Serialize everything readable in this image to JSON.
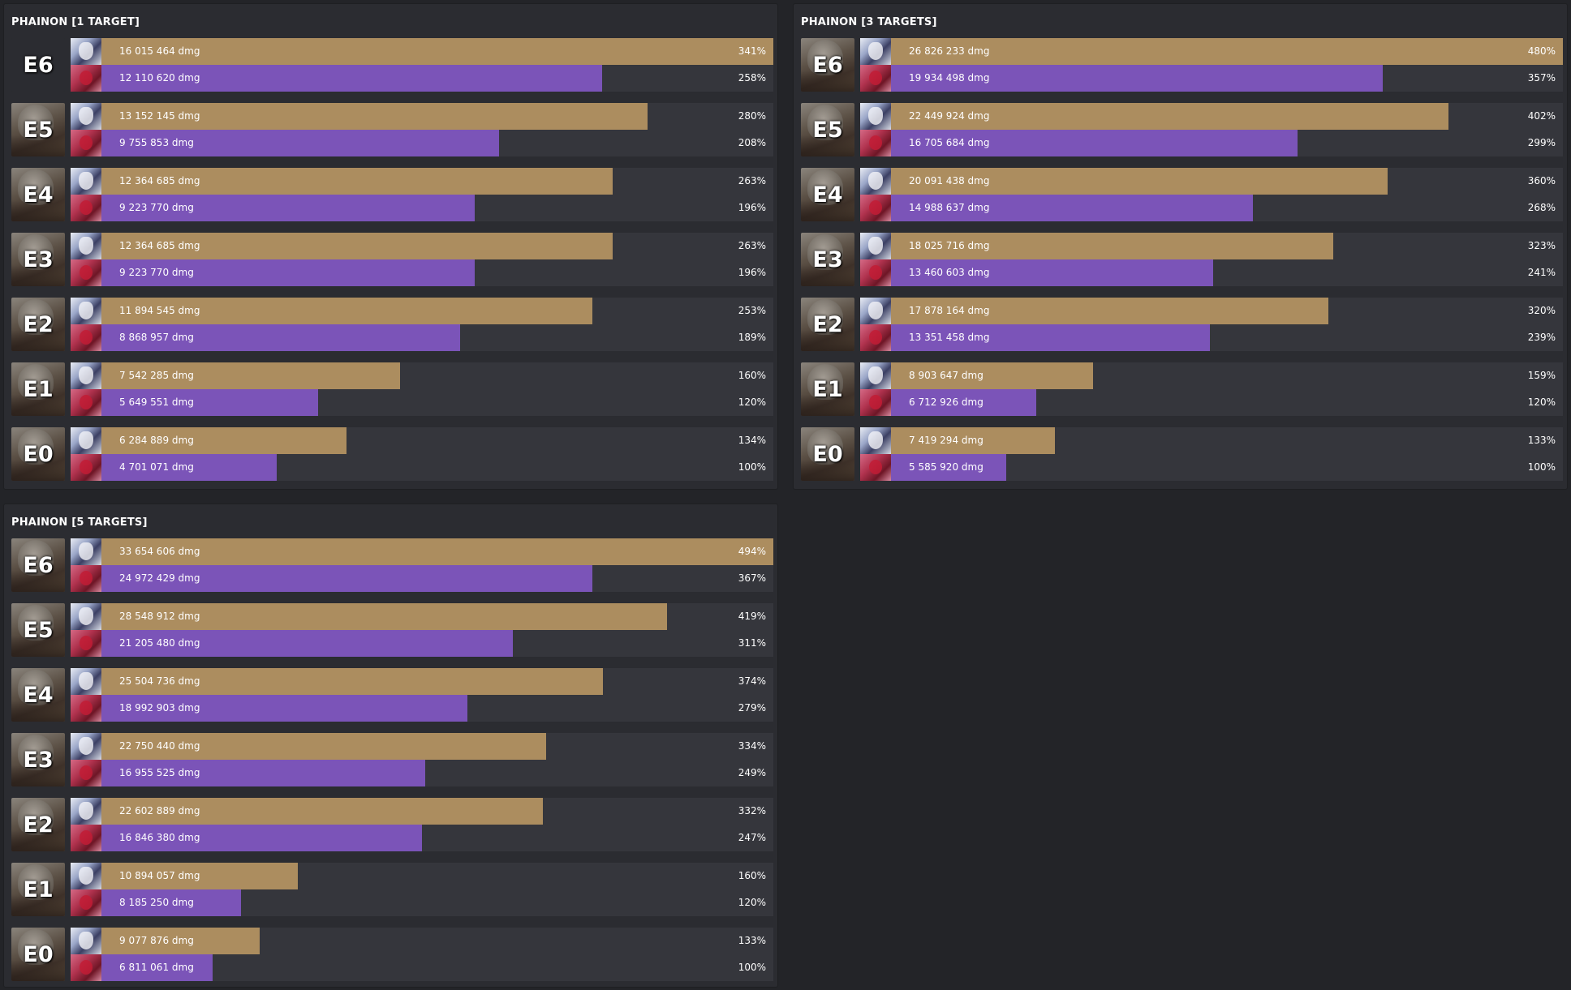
{
  "colors": {
    "background": "#232428",
    "panel": "#2b2c31",
    "track": "#35363c",
    "phainon_bar": "#ac8d5f",
    "partner_bar": "#7b54b8"
  },
  "icons": {
    "phainon_avatar": "phainon-avatar-icon",
    "partner_avatar": "partner-avatar-icon",
    "eidolon_portrait": "eidolon-portrait-icon"
  },
  "chart_data": [
    {
      "type": "bar",
      "title": "PHAINON [1 TARGET]",
      "orientation": "horizontal",
      "categories": [
        "E6",
        "E5",
        "E4",
        "E3",
        "E2",
        "E1",
        "E0"
      ],
      "xlim": [
        0,
        341
      ],
      "series": [
        {
          "values": [
            16015464,
            13152145,
            12364685,
            12364685,
            11894545,
            7542285,
            6284889
          ],
          "labels": [
            "16 015 464 dmg",
            "13 152 145 dmg",
            "12 364 685 dmg",
            "12 364 685 dmg",
            "11 894 545 dmg",
            "7 542 285 dmg",
            "6 284 889 dmg"
          ],
          "percent": [
            341,
            280,
            263,
            263,
            253,
            160,
            134
          ],
          "percent_labels": [
            "341%",
            "280%",
            "263%",
            "263%",
            "253%",
            "160%",
            "134%"
          ]
        },
        {
          "values": [
            12110620,
            9755853,
            9223770,
            9223770,
            8868957,
            5649551,
            4701071
          ],
          "labels": [
            "12 110 620 dmg",
            "9 755 853 dmg",
            "9 223 770 dmg",
            "9 223 770 dmg",
            "8 868 957 dmg",
            "5 649 551 dmg",
            "4 701 071 dmg"
          ],
          "percent": [
            258,
            208,
            196,
            196,
            189,
            120,
            100
          ],
          "percent_labels": [
            "258%",
            "208%",
            "196%",
            "196%",
            "189%",
            "120%",
            "100%"
          ]
        }
      ]
    },
    {
      "type": "bar",
      "title": "PHAINON [3 TARGETS]",
      "orientation": "horizontal",
      "categories": [
        "E6",
        "E5",
        "E4",
        "E3",
        "E2",
        "E1",
        "E0"
      ],
      "xlim": [
        0,
        480
      ],
      "series": [
        {
          "values": [
            26826233,
            22449924,
            20091438,
            18025716,
            17878164,
            8903647,
            7419294
          ],
          "labels": [
            "26 826 233 dmg",
            "22 449 924 dmg",
            "20 091 438 dmg",
            "18 025 716 dmg",
            "17 878 164 dmg",
            "8 903 647 dmg",
            "7 419 294 dmg"
          ],
          "percent": [
            480,
            402,
            360,
            323,
            320,
            159,
            133
          ],
          "percent_labels": [
            "480%",
            "402%",
            "360%",
            "323%",
            "320%",
            "159%",
            "133%"
          ]
        },
        {
          "values": [
            19934498,
            16705684,
            14988637,
            13460603,
            13351458,
            6712926,
            5585920
          ],
          "labels": [
            "19 934 498 dmg",
            "16 705 684 dmg",
            "14 988 637 dmg",
            "13 460 603 dmg",
            "13 351 458 dmg",
            "6 712 926 dmg",
            "5 585 920 dmg"
          ],
          "percent": [
            357,
            299,
            268,
            241,
            239,
            120,
            100
          ],
          "percent_labels": [
            "357%",
            "299%",
            "268%",
            "241%",
            "239%",
            "120%",
            "100%"
          ]
        }
      ]
    },
    {
      "type": "bar",
      "title": "PHAINON [5 TARGETS]",
      "orientation": "horizontal",
      "categories": [
        "E6",
        "E5",
        "E4",
        "E3",
        "E2",
        "E1",
        "E0"
      ],
      "xlim": [
        0,
        494
      ],
      "series": [
        {
          "values": [
            33654606,
            28548912,
            25504736,
            22750440,
            22602889,
            10894057,
            9077876
          ],
          "labels": [
            "33 654 606 dmg",
            "28 548 912 dmg",
            "25 504 736 dmg",
            "22 750 440 dmg",
            "22 602 889 dmg",
            "10 894 057 dmg",
            "9 077 876 dmg"
          ],
          "percent": [
            494,
            419,
            374,
            334,
            332,
            160,
            133
          ],
          "percent_labels": [
            "494%",
            "419%",
            "374%",
            "334%",
            "332%",
            "160%",
            "133%"
          ]
        },
        {
          "values": [
            24972429,
            21205480,
            18992903,
            16955525,
            16846380,
            8185250,
            6811061
          ],
          "labels": [
            "24 972 429 dmg",
            "21 205 480 dmg",
            "18 992 903 dmg",
            "16 955 525 dmg",
            "16 846 380 dmg",
            "8 185 250 dmg",
            "6 811 061 dmg"
          ],
          "percent": [
            367,
            311,
            279,
            249,
            247,
            120,
            100
          ],
          "percent_labels": [
            "367%",
            "311%",
            "279%",
            "249%",
            "247%",
            "120%",
            "100%"
          ]
        }
      ]
    }
  ]
}
